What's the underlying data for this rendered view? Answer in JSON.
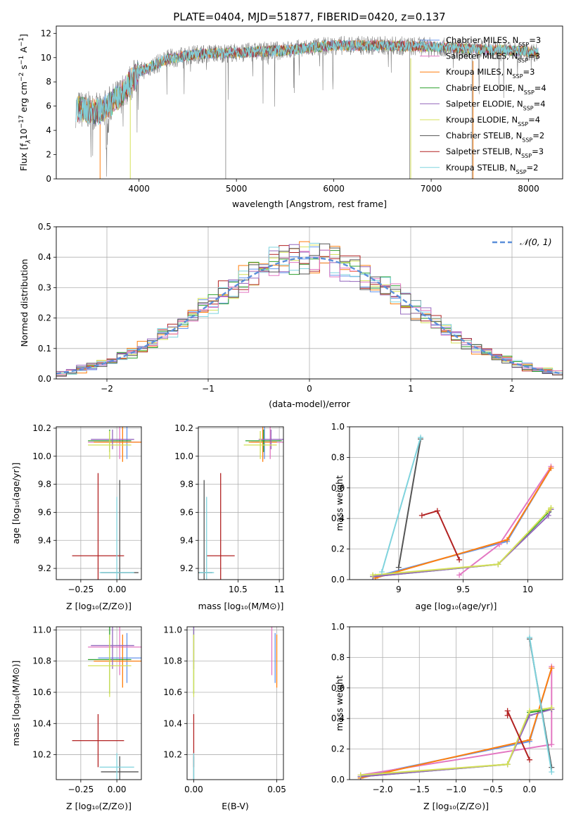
{
  "title": "PLATE=0404, MJD=51877, FIBERID=0420, z=0.137",
  "colors": {
    "Chabrier MILES": "#6495ed",
    "Salpeter MILES": "#e377c2",
    "Kroupa MILES": "#ff7f0e",
    "Chabrier ELODIE": "#2ca02c",
    "Salpeter ELODIE": "#9467bd",
    "Kroupa ELODIE": "#d4e157",
    "Chabrier STELIB": "#555555",
    "Salpeter STELIB": "#b22222",
    "Kroupa STELIB": "#7fd3dd",
    "data": "#808080",
    "normal_curve": "#5b8fd9"
  },
  "chart_data": [
    {
      "id": "spectrum",
      "type": "line",
      "xlabel": "wavelength [Angstrom, rest frame]",
      "ylabel": "Flux [f_λ10^-17 erg cm^-2 s^-1 A^-1]",
      "xlim": [
        3150,
        8350
      ],
      "ylim": [
        0,
        12.6
      ],
      "xticks": [
        4000,
        5000,
        6000,
        7000,
        8000
      ],
      "yticks": [
        0,
        2,
        4,
        6,
        8,
        10,
        12
      ],
      "grid": false,
      "legend_position": "right",
      "legend": [
        {
          "name": "Chabrier MILES, N_SSP=3"
        },
        {
          "name": "Salpeter MILES, N_SSP=3"
        },
        {
          "name": "Kroupa MILES, N_SSP=3"
        },
        {
          "name": "Chabrier ELODIE, N_SSP=4"
        },
        {
          "name": "Salpeter ELODIE, N_SSP=4"
        },
        {
          "name": "Kroupa ELODIE, N_SSP=4"
        },
        {
          "name": "Chabrier STELIB, N_SSP=2"
        },
        {
          "name": "Salpeter STELIB, N_SSP=3"
        },
        {
          "name": "Kroupa STELIB, N_SSP=2"
        }
      ],
      "continuum_x": [
        3350,
        3600,
        3800,
        4000,
        4300,
        4600,
        5000,
        5500,
        6000,
        6500,
        7000,
        7500,
        8000,
        8100
      ],
      "continuum_y": [
        5.8,
        5.5,
        6.8,
        8.8,
        9.9,
        10.3,
        10.4,
        10.6,
        11.0,
        11.0,
        10.9,
        10.7,
        10.5,
        10.4
      ]
    },
    {
      "id": "residuals",
      "type": "line",
      "xlabel": "(data-model)/error",
      "ylabel": "Normed distribution",
      "xlim": [
        -2.5,
        2.5
      ],
      "ylim": [
        0,
        0.5
      ],
      "xticks": [
        -2,
        -1,
        0,
        1,
        2
      ],
      "yticks": [
        0.0,
        0.1,
        0.2,
        0.3,
        0.4,
        0.5
      ],
      "grid": true,
      "legend_position": "top-right",
      "legend": [
        {
          "name": "𝒩(0, 1)"
        }
      ],
      "normal": {
        "mean": 0,
        "sigma": 1
      }
    },
    {
      "id": "age-vs-Z",
      "type": "scatter",
      "xlabel": "Z [log₁₀(Z/Z⊙)]",
      "ylabel": "age  [log₁₀(age/yr)]",
      "xlim": [
        -0.42,
        0.17
      ],
      "ylim": [
        9.12,
        10.21
      ],
      "xticks": [
        -0.25,
        0.0
      ],
      "xticklabels": [
        "−0.25",
        "0.00"
      ],
      "yticks": [
        9.2,
        9.4,
        9.6,
        9.8,
        10.0,
        10.2
      ],
      "grid": true
    },
    {
      "id": "age-vs-mass",
      "type": "scatter",
      "xlabel": "mass [log₁₀(M/M⊙)]",
      "xlim": [
        10.02,
        11.05
      ],
      "ylim": [
        9.12,
        10.21
      ],
      "xticks": [
        10.5,
        11.0
      ],
      "yticks": [
        9.2,
        9.4,
        9.6,
        9.8,
        10.0,
        10.2
      ],
      "grid": true
    },
    {
      "id": "weight-vs-age",
      "type": "line",
      "xlabel": "age  [log₁₀(age/yr)]",
      "ylabel": "mass weight",
      "xlim": [
        8.62,
        10.27
      ],
      "ylim": [
        0,
        1.0
      ],
      "xticks": [
        9.0,
        9.5,
        10.0
      ],
      "yticks": [
        0.0,
        0.2,
        0.4,
        0.6,
        0.8,
        1.0
      ],
      "grid": true
    },
    {
      "id": "mass-vs-Z",
      "type": "scatter",
      "xlabel": "Z [log₁₀(Z/Z⊙)]",
      "ylabel": "mass [log₁₀(M/M⊙)]",
      "xlim": [
        -0.42,
        0.17
      ],
      "ylim": [
        10.04,
        11.02
      ],
      "xticks": [
        -0.25,
        0.0
      ],
      "xticklabels": [
        "−0.25",
        "0.00"
      ],
      "yticks": [
        10.2,
        10.4,
        10.6,
        10.8,
        11.0
      ],
      "grid": true
    },
    {
      "id": "mass-vs-ebv",
      "type": "scatter",
      "xlabel": "E(B-V)",
      "xlim": [
        -0.004,
        0.054
      ],
      "ylim": [
        10.04,
        11.02
      ],
      "xticks": [
        0.0,
        0.05
      ],
      "xticklabels": [
        "0.00",
        "0.05"
      ],
      "yticks": [
        10.2,
        10.4,
        10.6,
        10.8,
        11.0
      ],
      "grid": true
    },
    {
      "id": "weight-vs-Z",
      "type": "line",
      "xlabel": "Z [log₁₀(Z/Z⊙)]",
      "ylabel": "mass weight",
      "xlim": [
        -2.45,
        0.45
      ],
      "ylim": [
        0,
        1.0
      ],
      "xticks": [
        -2.0,
        -1.5,
        -1.0,
        -0.5,
        0.0
      ],
      "xticklabels": [
        "−2.0",
        "−1.5",
        "−1.0",
        "−0.5",
        "0.0"
      ],
      "yticks": [
        0.0,
        0.2,
        0.4,
        0.6,
        0.8,
        1.0
      ],
      "grid": true
    }
  ],
  "models": [
    {
      "name": "Chabrier MILES",
      "Z": 0.07,
      "Zerr": 0.2,
      "age": 10.1,
      "ageerr": 0.12,
      "mass": 10.82,
      "masserr": 0.16,
      "ebv": 0.049,
      "ssp_age": [
        8.82,
        9.84,
        10.18
      ],
      "ssp_Z": [
        -2.3,
        0.0,
        0.3
      ],
      "ssp_w": [
        0.02,
        0.25,
        0.73
      ]
    },
    {
      "name": "Salpeter MILES",
      "Z": 0.02,
      "Zerr": 0.22,
      "age": 10.1,
      "ageerr": 0.12,
      "mass": 10.89,
      "masserr": 0.18,
      "ebv": 0.047,
      "ssp_age": [
        9.47,
        9.78,
        10.18
      ],
      "ssp_Z": [
        -2.3,
        0.3,
        0.3
      ],
      "ssp_w": [
        0.03,
        0.23,
        0.74
      ]
    },
    {
      "name": "Kroupa MILES",
      "Z": 0.04,
      "Zerr": 0.2,
      "age": 10.1,
      "ageerr": 0.14,
      "mass": 10.8,
      "masserr": 0.17,
      "ebv": 0.05,
      "ssp_age": [
        8.82,
        9.84,
        10.18
      ],
      "ssp_Z": [
        -2.3,
        0.0,
        0.3
      ],
      "ssp_w": [
        0.01,
        0.26,
        0.73
      ]
    },
    {
      "name": "Chabrier ELODIE",
      "Z": -0.05,
      "Zerr": 0.15,
      "age": 10.11,
      "ageerr": 0.08,
      "mass": 10.81,
      "masserr": 0.22,
      "ebv": 0.0,
      "ssp_age": [
        8.8,
        9.77,
        10.16,
        10.18
      ],
      "ssp_Z": [
        -2.3,
        -0.3,
        0.0,
        0.3
      ],
      "ssp_w": [
        0.02,
        0.1,
        0.44,
        0.46
      ]
    },
    {
      "name": "Salpeter ELODIE",
      "Z": -0.03,
      "Zerr": 0.15,
      "age": 10.12,
      "ageerr": 0.07,
      "mass": 10.9,
      "masserr": 0.15,
      "ebv": 0.0,
      "ssp_age": [
        8.8,
        9.77,
        10.16,
        10.18
      ],
      "ssp_Z": [
        -2.3,
        -0.3,
        0.0,
        0.3
      ],
      "ssp_w": [
        0.02,
        0.1,
        0.42,
        0.46
      ]
    },
    {
      "name": "Kroupa ELODIE",
      "Z": -0.05,
      "Zerr": 0.15,
      "age": 10.08,
      "ageerr": 0.1,
      "mass": 10.77,
      "masserr": 0.2,
      "ebv": 0.0,
      "ssp_age": [
        8.8,
        9.77,
        10.16,
        10.18
      ],
      "ssp_Z": [
        -2.3,
        -0.3,
        0.0,
        0.3
      ],
      "ssp_w": [
        0.03,
        0.1,
        0.45,
        0.47
      ]
    },
    {
      "name": "Chabrier STELIB",
      "Z": 0.02,
      "Zerr": 0.13,
      "age": 9.17,
      "ageerr": 0.66,
      "mass": 10.09,
      "masserr": 0.1,
      "ebv": 0.0,
      "ssp_age": [
        9.0,
        9.17
      ],
      "ssp_Z": [
        0.3,
        0.0
      ],
      "ssp_w": [
        0.08,
        0.92
      ]
    },
    {
      "name": "Salpeter STELIB",
      "Z": -0.13,
      "Zerr": 0.18,
      "age": 9.29,
      "ageerr": 0.59,
      "mass": 10.29,
      "masserr": 0.17,
      "ebv": 0.0,
      "ssp_age": [
        9.18,
        9.3,
        9.47
      ],
      "ssp_Z": [
        -0.3,
        -0.3,
        0.0
      ],
      "ssp_w": [
        0.42,
        0.45,
        0.13
      ]
    },
    {
      "name": "Kroupa STELIB",
      "Z": 0.0,
      "Zerr": 0.12,
      "age": 9.17,
      "ageerr": 0.54,
      "mass": 10.12,
      "masserr": 0.09,
      "ebv": 0.0,
      "ssp_age": [
        8.87,
        9.17
      ],
      "ssp_Z": [
        0.3,
        0.0
      ],
      "ssp_w": [
        0.05,
        0.93
      ]
    }
  ]
}
